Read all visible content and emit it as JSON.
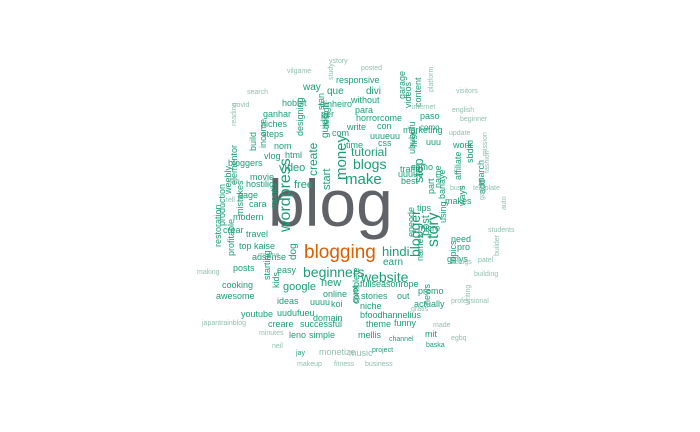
{
  "colors": {
    "background": "#ffffff",
    "top_word": "#5f6368",
    "second_word": "#d95f02",
    "common": "#1b9e77",
    "faint": "#8fbfb0"
  },
  "words": [
    {
      "t": "blog",
      "tier": "top"
    },
    {
      "t": "blogging",
      "tier": "second"
    },
    {
      "t": "make",
      "tier": "l"
    },
    {
      "t": "money",
      "tier": "l"
    },
    {
      "t": "step",
      "tier": "l"
    },
    {
      "t": "blogs",
      "tier": "l"
    },
    {
      "t": "website",
      "tier": "l"
    },
    {
      "t": "wordpress",
      "tier": "l"
    },
    {
      "t": "blogger",
      "tier": "l"
    },
    {
      "t": "story",
      "tier": "l"
    },
    {
      "t": "beginners",
      "tier": "l"
    },
    {
      "t": "hindi",
      "tier": "l"
    },
    {
      "t": "create",
      "tier": "l"
    },
    {
      "t": "start",
      "tier": "m"
    },
    {
      "t": "tutorial",
      "tier": "m"
    },
    {
      "t": "post",
      "tier": "m"
    },
    {
      "t": "video",
      "tier": "m"
    },
    {
      "t": "free",
      "tier": "m"
    },
    {
      "t": "earn",
      "tier": "m"
    },
    {
      "t": "dog",
      "tier": "m"
    },
    {
      "t": "new",
      "tier": "m"
    },
    {
      "t": "google",
      "tier": "m"
    },
    {
      "t": "guide",
      "tier": "m"
    },
    {
      "t": "way",
      "tier": "m"
    },
    {
      "t": "que",
      "tier": "m"
    },
    {
      "t": "divi",
      "tier": "m"
    },
    {
      "t": "responsive",
      "tier": "s"
    },
    {
      "t": "vstory",
      "tier": "xs"
    },
    {
      "t": "posted",
      "tier": "xs"
    },
    {
      "t": "study",
      "tier": "xs"
    },
    {
      "t": "vilgame",
      "tier": "xs"
    },
    {
      "t": "search",
      "tier": "xs"
    },
    {
      "t": "covid",
      "tier": "xs"
    },
    {
      "t": "reading",
      "tier": "xs"
    },
    {
      "t": "hobbit",
      "tier": "s"
    },
    {
      "t": "stan",
      "tier": "s"
    },
    {
      "t": "dinheiro",
      "tier": "s"
    },
    {
      "t": "without",
      "tier": "s"
    },
    {
      "t": "para",
      "tier": "s"
    },
    {
      "t": "content",
      "tier": "s"
    },
    {
      "t": "videos",
      "tier": "s"
    },
    {
      "t": "garage",
      "tier": "s"
    },
    {
      "t": "platform",
      "tier": "xs"
    },
    {
      "t": "internet",
      "tier": "xs"
    },
    {
      "t": "english",
      "tier": "xs"
    },
    {
      "t": "visitors",
      "tier": "xs"
    },
    {
      "t": "ganhar",
      "tier": "s"
    },
    {
      "t": "niches",
      "tier": "s"
    },
    {
      "t": "designing",
      "tier": "s"
    },
    {
      "t": "per",
      "tier": "s"
    },
    {
      "t": "como",
      "tier": "s"
    },
    {
      "t": "write",
      "tier": "s"
    },
    {
      "t": "con",
      "tier": "s"
    },
    {
      "t": "horrorcome",
      "tier": "s"
    },
    {
      "t": "paso",
      "tier": "s"
    },
    {
      "t": "beginner",
      "tier": "xs"
    },
    {
      "t": "steps",
      "tier": "s"
    },
    {
      "t": "design",
      "tier": "s"
    },
    {
      "t": "com",
      "tier": "s"
    },
    {
      "t": "uuueuu",
      "tier": "s"
    },
    {
      "t": "marketing",
      "tier": "s"
    },
    {
      "t": "update",
      "tier": "xs"
    },
    {
      "t": "income",
      "tier": "s"
    },
    {
      "t": "build",
      "tier": "s"
    },
    {
      "t": "nom",
      "tier": "s"
    },
    {
      "t": "time",
      "tier": "s"
    },
    {
      "t": "css",
      "tier": "s"
    },
    {
      "t": "uuu",
      "tier": "s"
    },
    {
      "t": "ububufu",
      "tier": "s"
    },
    {
      "t": "work",
      "tier": "s"
    },
    {
      "t": "mission",
      "tier": "xs"
    },
    {
      "t": "elementor",
      "tier": "s"
    },
    {
      "t": "bloggers",
      "tier": "s"
    },
    {
      "t": "vlog",
      "tier": "s"
    },
    {
      "t": "html",
      "tier": "s"
    },
    {
      "t": "first",
      "tier": "s"
    },
    {
      "t": "uuuue",
      "tier": "s"
    },
    {
      "t": "como",
      "tier": "s"
    },
    {
      "t": "sbdiki",
      "tier": "s"
    },
    {
      "t": "affiliate",
      "tier": "s"
    },
    {
      "t": "fashion",
      "tier": "xs"
    },
    {
      "t": "weebly",
      "tier": "s"
    },
    {
      "t": "movie",
      "tier": "s"
    },
    {
      "t": "traffic",
      "tier": "s"
    },
    {
      "t": "best",
      "tier": "s"
    },
    {
      "t": "bust",
      "tier": "xs"
    },
    {
      "t": "template",
      "tier": "xs"
    },
    {
      "t": "production",
      "tier": "s"
    },
    {
      "t": "mistakes",
      "tier": "s"
    },
    {
      "t": "hostilio",
      "tier": "s"
    },
    {
      "t": "month",
      "tier": "s"
    },
    {
      "t": "part",
      "tier": "s"
    },
    {
      "t": "banaye",
      "tier": "s"
    },
    {
      "t": "name",
      "tier": "s"
    },
    {
      "t": "site",
      "tier": "xs"
    },
    {
      "t": "page",
      "tier": "s"
    },
    {
      "t": "cara",
      "tier": "s"
    },
    {
      "t": "tips",
      "tier": "s"
    },
    {
      "t": "makes",
      "tier": "s"
    },
    {
      "t": "add",
      "tier": "s"
    },
    {
      "t": "march",
      "tier": "s"
    },
    {
      "t": "ways",
      "tier": "s"
    },
    {
      "t": "tell",
      "tier": "xs"
    },
    {
      "t": "gay",
      "tier": "xs"
    },
    {
      "t": "auto",
      "tier": "xs"
    },
    {
      "t": "modern",
      "tier": "s"
    },
    {
      "t": "using",
      "tier": "s"
    },
    {
      "t": "micro",
      "tier": "s"
    },
    {
      "t": "restoration",
      "tier": "s"
    },
    {
      "t": "crear",
      "tier": "s"
    },
    {
      "t": "travel",
      "tier": "s"
    },
    {
      "t": "need",
      "tier": "s"
    },
    {
      "t": "pro",
      "tier": "s"
    },
    {
      "t": "students",
      "tier": "xs"
    },
    {
      "t": "profitable",
      "tier": "s"
    },
    {
      "t": "top",
      "tier": "s"
    },
    {
      "t": "kaise",
      "tier": "s"
    },
    {
      "t": "kids",
      "tier": "s"
    },
    {
      "t": "epeode",
      "tier": "s"
    },
    {
      "t": "names",
      "tier": "s"
    },
    {
      "t": "girlys",
      "tier": "s"
    },
    {
      "t": "posts",
      "tier": "s"
    },
    {
      "t": "adsense",
      "tier": "s"
    },
    {
      "t": "easy",
      "tier": "s"
    },
    {
      "t": "routine",
      "tier": "xs"
    },
    {
      "t": "fullseasonrope",
      "tier": "s"
    },
    {
      "t": "topics",
      "tier": "s"
    },
    {
      "t": "patel",
      "tier": "xs"
    },
    {
      "t": "making",
      "tier": "xs"
    },
    {
      "t": "cooking",
      "tier": "s"
    },
    {
      "t": "starting",
      "tier": "s"
    },
    {
      "t": "blogs",
      "tier": "xs"
    },
    {
      "t": "building",
      "tier": "xs"
    },
    {
      "t": "builder",
      "tier": "xs"
    },
    {
      "t": "awesome",
      "tier": "s"
    },
    {
      "t": "ideas",
      "tier": "s"
    },
    {
      "t": "online",
      "tier": "s"
    },
    {
      "t": "stories",
      "tier": "s"
    },
    {
      "t": "out",
      "tier": "s"
    },
    {
      "t": "promo",
      "tier": "s"
    },
    {
      "t": "gratis",
      "tier": "xs"
    },
    {
      "t": "professional",
      "tier": "xs"
    },
    {
      "t": "youtube",
      "tier": "s"
    },
    {
      "t": "uudufueu",
      "tier": "s"
    },
    {
      "t": "koi",
      "tier": "s"
    },
    {
      "t": "uuuu",
      "tier": "s"
    },
    {
      "t": "niche",
      "tier": "s"
    },
    {
      "t": "actually",
      "tier": "s"
    },
    {
      "t": "writing",
      "tier": "xs"
    },
    {
      "t": "japantrainblog",
      "tier": "xs"
    },
    {
      "t": "creare",
      "tier": "s"
    },
    {
      "t": "successful",
      "tier": "s"
    },
    {
      "t": "domain",
      "tier": "s"
    },
    {
      "t": "quot",
      "tier": "s"
    },
    {
      "t": "bfoodhannelius",
      "tier": "s"
    },
    {
      "t": "news",
      "tier": "s"
    },
    {
      "t": "funny",
      "tier": "s"
    },
    {
      "t": "made",
      "tier": "xs"
    },
    {
      "t": "minutes",
      "tier": "xs"
    },
    {
      "t": "leno",
      "tier": "s"
    },
    {
      "t": "simple",
      "tier": "s"
    },
    {
      "t": "complete",
      "tier": "s"
    },
    {
      "t": "theme",
      "tier": "s"
    },
    {
      "t": "mellis",
      "tier": "s"
    },
    {
      "t": "mit",
      "tier": "s"
    },
    {
      "t": "egbq",
      "tier": "xs"
    },
    {
      "t": "channel",
      "tier": "s"
    },
    {
      "t": "baska",
      "tier": "s"
    },
    {
      "t": "neil",
      "tier": "xs"
    },
    {
      "t": "monetize",
      "tier": "xs"
    },
    {
      "t": "music",
      "tier": "xs"
    },
    {
      "t": "project",
      "tier": "s"
    },
    {
      "t": "jay",
      "tier": "s"
    },
    {
      "t": "makeup",
      "tier": "xs"
    },
    {
      "t": "fitness",
      "tier": "xs"
    },
    {
      "t": "business",
      "tier": "xs"
    },
    {
      "t": "decathlon",
      "tier": "xs"
    },
    {
      "t": "lesson",
      "tier": "xs"
    }
  ]
}
